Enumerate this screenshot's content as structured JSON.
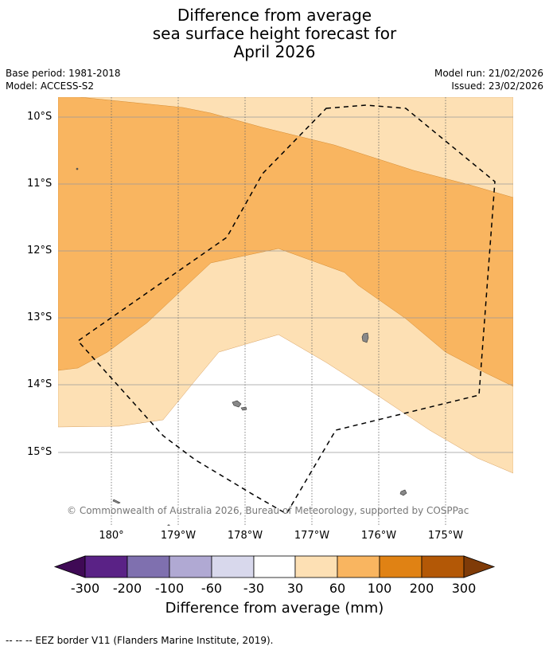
{
  "title": {
    "line1": "Difference from average",
    "line2": "sea surface height forecast for",
    "line3": "April 2026"
  },
  "meta": {
    "base_period": "Base period: 1981-2018",
    "model": "Model: ACCESS-S2",
    "model_run": "Model run: 21/02/2026",
    "issued": "Issued: 23/02/2026"
  },
  "map": {
    "lat_labels": [
      "10°S",
      "11°S",
      "12°S",
      "13°S",
      "14°S",
      "15°S"
    ],
    "lon_labels": [
      "180°",
      "179°W",
      "178°W",
      "177°W",
      "176°W",
      "175°W"
    ],
    "copyright": "© Commonwealth of Australia 2026, Bureau of Meteorology, supported by COSPPac",
    "boundary": "EEZ border"
  },
  "colorbar": {
    "title": "Difference from average (mm)",
    "labels": [
      "-300",
      "-200",
      "-100",
      "-60",
      "-30",
      "30",
      "60",
      "100",
      "200",
      "300"
    ],
    "colors": [
      "#3f0a55",
      "#5a2286",
      "#7f70af",
      "#b0a9d3",
      "#d8d8ec",
      "#ffffff",
      "#fde0b4",
      "#f9b560",
      "#e08214",
      "#b35806",
      "#7f3b08"
    ],
    "map_fill_colors": {
      "band_30_60": "#fde0b4",
      "band_60_100": "#f9b560",
      "band_neutral": "#ffffff",
      "land": "#888888"
    }
  },
  "legend": {
    "text": "--  --  -- EEZ border V11 (Flanders Marine Institute, 2019)."
  }
}
